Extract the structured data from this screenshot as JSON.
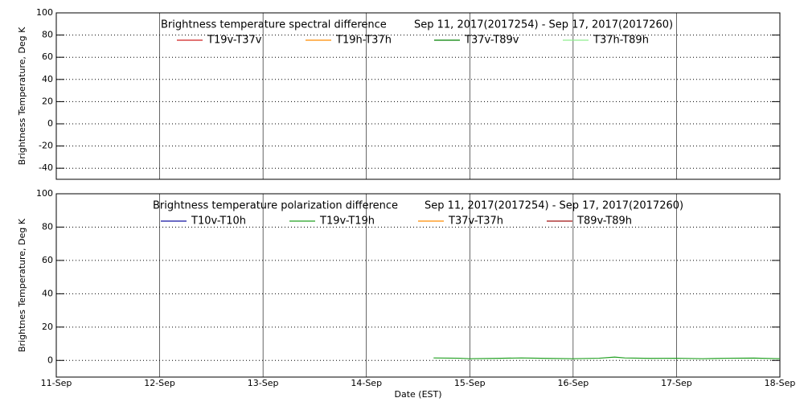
{
  "chart_data": [
    {
      "type": "line",
      "title": "Brightness temperature spectral difference",
      "subtitle": "Sep 11, 2017(2017254) - Sep 17, 2017(2017260)",
      "y_label": "Brightness Temperature, Deg K",
      "xlim": [
        11,
        18
      ],
      "xticks": [
        11,
        12,
        13,
        14,
        15,
        16,
        17,
        18
      ],
      "ylim": [
        -50,
        100
      ],
      "yticks": [
        -40,
        -20,
        0,
        20,
        40,
        60,
        80,
        100
      ],
      "grid": true,
      "series": [
        {
          "name": "T19v-T37v",
          "color": "#d02020",
          "x": [],
          "values": []
        },
        {
          "name": "T19h-T37h",
          "color": "#ff8c00",
          "x": [],
          "values": []
        },
        {
          "name": "T37v-T89v",
          "color": "#008000",
          "x": [],
          "values": []
        },
        {
          "name": "T37h-T89h",
          "color": "#90ee90",
          "x": [],
          "values": []
        }
      ]
    },
    {
      "type": "line",
      "title": "Brightness temperature polarization difference",
      "subtitle": "Sep 11, 2017(2017254) - Sep 17, 2017(2017260)",
      "y_label": "Brightnes Temperature, Deg K",
      "x_label": "Date (EST)",
      "xlim": [
        11,
        18
      ],
      "xticks": [
        {
          "value": 11,
          "label": "11-Sep"
        },
        {
          "value": 12,
          "label": "12-Sep"
        },
        {
          "value": 13,
          "label": "13-Sep"
        },
        {
          "value": 14,
          "label": "14-Sep"
        },
        {
          "value": 15,
          "label": "15-Sep"
        },
        {
          "value": 16,
          "label": "16-Sep"
        },
        {
          "value": 17,
          "label": "17-Sep"
        },
        {
          "value": 18,
          "label": "18-Sep"
        }
      ],
      "ylim": [
        -10,
        100
      ],
      "yticks": [
        0,
        20,
        40,
        60,
        80,
        100
      ],
      "grid": true,
      "series": [
        {
          "name": "T10v-T10h",
          "color": "#1010a0",
          "x": [],
          "values": []
        },
        {
          "name": "T19v-T19h",
          "color": "#22a022",
          "x": [
            14.65,
            14.9,
            15.0,
            15.25,
            15.5,
            15.75,
            16.0,
            16.25,
            16.4,
            16.5,
            16.75,
            17.0,
            17.25,
            17.5,
            17.75,
            18.0
          ],
          "values": [
            1.5,
            1.3,
            1.0,
            1.2,
            1.5,
            1.2,
            1.0,
            1.3,
            2.0,
            1.5,
            1.2,
            1.3,
            1.0,
            1.3,
            1.4,
            1.0
          ]
        },
        {
          "name": "T37v-T37h",
          "color": "#ff8c00",
          "x": [],
          "values": []
        },
        {
          "name": "T89v-T89h",
          "color": "#a01010",
          "x": [],
          "values": []
        }
      ]
    }
  ]
}
